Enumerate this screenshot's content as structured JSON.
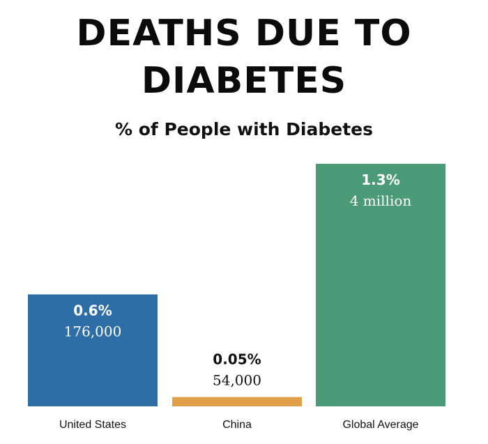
{
  "title_line1": "DEATHS DUE TO",
  "title_line2": "DIABETES",
  "subtitle": "% of People with Diabetes",
  "chart_data": {
    "type": "bar",
    "categories": [
      "United States",
      "China",
      "Global Average"
    ],
    "values": [
      0.6,
      0.05,
      1.3
    ],
    "value_labels": [
      "0.6%",
      "0.05%",
      "1.3%"
    ],
    "count_labels": [
      "176,000",
      "54,000",
      "4 million"
    ],
    "colors": [
      "#2e6ea6",
      "#e0a047",
      "#4b9b78"
    ],
    "ylim": [
      0,
      1.3
    ],
    "grid": false,
    "legend": "none"
  }
}
